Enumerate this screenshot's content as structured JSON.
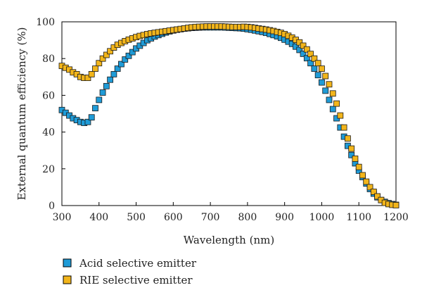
{
  "chart_data": {
    "type": "scatter",
    "title": "",
    "xlabel": "Wavelength (nm)",
    "ylabel": "External quantum efficiency (%)",
    "xlim": [
      300,
      1200
    ],
    "ylim": [
      0,
      100
    ],
    "xticks": [
      300,
      400,
      500,
      600,
      700,
      800,
      900,
      1000,
      1100,
      1200
    ],
    "yticks": [
      0,
      20,
      40,
      60,
      80,
      100
    ],
    "grid": false,
    "legend_position": "bottom-left",
    "marker": "square",
    "series": [
      {
        "name": "Acid selective emitter",
        "color": "#1f9bd7",
        "x": [
          300,
          310,
          320,
          330,
          340,
          350,
          360,
          370,
          380,
          390,
          400,
          410,
          420,
          430,
          440,
          450,
          460,
          470,
          480,
          490,
          500,
          510,
          520,
          530,
          540,
          550,
          560,
          570,
          580,
          590,
          600,
          610,
          620,
          630,
          640,
          650,
          660,
          670,
          680,
          690,
          700,
          710,
          720,
          730,
          740,
          750,
          760,
          770,
          780,
          790,
          800,
          810,
          820,
          830,
          840,
          850,
          860,
          870,
          880,
          890,
          900,
          910,
          920,
          930,
          940,
          950,
          960,
          970,
          980,
          990,
          1000,
          1010,
          1020,
          1030,
          1040,
          1050,
          1060,
          1070,
          1080,
          1090,
          1100,
          1110,
          1120,
          1130,
          1140,
          1150,
          1160,
          1170,
          1180,
          1190,
          1200
        ],
        "values": [
          52,
          50.5,
          49,
          47.5,
          46.5,
          45.5,
          45,
          45.5,
          48,
          53,
          57.5,
          61.5,
          65,
          68.5,
          71.5,
          74.5,
          77,
          79.5,
          81.5,
          83.5,
          85.5,
          87,
          88.5,
          90,
          91,
          92,
          92.8,
          93.5,
          94.2,
          94.8,
          95.3,
          95.7,
          96,
          96.3,
          96.5,
          96.7,
          96.8,
          96.9,
          97,
          97,
          97,
          97,
          97,
          97,
          96.9,
          96.8,
          96.7,
          96.6,
          96.5,
          96.3,
          96,
          95.7,
          95.3,
          94.9,
          94.5,
          94,
          93.4,
          92.8,
          92.1,
          91.3,
          90.3,
          89.2,
          88,
          86.5,
          84.7,
          82.6,
          80.2,
          77.5,
          74.5,
          71,
          67,
          62.5,
          57.5,
          52.5,
          47.5,
          42.5,
          37.5,
          32.5,
          27.5,
          23,
          19,
          15.5,
          12,
          9,
          6.5,
          4.5,
          3,
          2,
          1.3,
          0.8,
          0.4
        ]
      },
      {
        "name": "RIE selective emitter",
        "color": "#f2b51b",
        "x": [
          300,
          310,
          320,
          330,
          340,
          350,
          360,
          370,
          380,
          390,
          400,
          410,
          420,
          430,
          440,
          450,
          460,
          470,
          480,
          490,
          500,
          510,
          520,
          530,
          540,
          550,
          560,
          570,
          580,
          590,
          600,
          610,
          620,
          630,
          640,
          650,
          660,
          670,
          680,
          690,
          700,
          710,
          720,
          730,
          740,
          750,
          760,
          770,
          780,
          790,
          800,
          810,
          820,
          830,
          840,
          850,
          860,
          870,
          880,
          890,
          900,
          910,
          920,
          930,
          940,
          950,
          960,
          970,
          980,
          990,
          1000,
          1010,
          1020,
          1030,
          1040,
          1050,
          1060,
          1070,
          1080,
          1090,
          1100,
          1110,
          1120,
          1130,
          1140,
          1150,
          1160,
          1170,
          1180,
          1190,
          1200
        ],
        "values": [
          76,
          75,
          74,
          72.5,
          71.5,
          70,
          69.5,
          69.5,
          71.5,
          74.5,
          77.5,
          80,
          82,
          84,
          86,
          87.5,
          88.5,
          89.5,
          90.3,
          91,
          91.7,
          92.3,
          92.8,
          93.3,
          93.7,
          94,
          94.3,
          94.6,
          94.9,
          95.2,
          95.5,
          95.8,
          96.1,
          96.4,
          96.7,
          97,
          97.2,
          97.3,
          97.4,
          97.5,
          97.5,
          97.5,
          97.5,
          97.5,
          97.4,
          97.3,
          97.2,
          97.2,
          97.2,
          97.3,
          97.2,
          97,
          96.7,
          96.4,
          96.1,
          95.8,
          95.4,
          95,
          94.5,
          94,
          93.3,
          92.4,
          91.4,
          90.2,
          88.8,
          87,
          85,
          82.5,
          80,
          77.5,
          74.5,
          70.5,
          66,
          61,
          55.5,
          49,
          42.5,
          36.5,
          31,
          25.5,
          21,
          16.5,
          13,
          10,
          7.5,
          5,
          3,
          1.5,
          0.8,
          0.4,
          0.2
        ]
      }
    ]
  }
}
